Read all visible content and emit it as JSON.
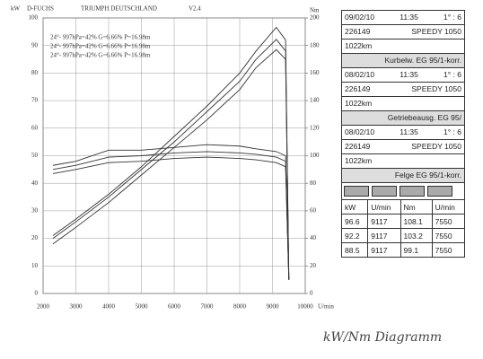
{
  "chart_data": {
    "type": "line",
    "header": [
      "D-FUCHS",
      "TRIUMPH DEUTSCHLAND",
      "V2.4"
    ],
    "y_label": "kW",
    "y2_label": "Nm",
    "x_label": "U/min",
    "x": [
      2300,
      3000,
      4000,
      5000,
      6000,
      7000,
      8000,
      8500,
      9117,
      9400,
      9500
    ],
    "xlim": [
      2000,
      10000
    ],
    "xticks": [
      2000,
      3000,
      4000,
      5000,
      6000,
      7000,
      8000,
      9000,
      10000
    ],
    "ylim": [
      0,
      100
    ],
    "yticks": [
      0,
      10,
      20,
      30,
      40,
      50,
      60,
      70,
      80,
      90,
      100
    ],
    "y2lim": [
      0,
      200
    ],
    "y2ticks": [
      0,
      20,
      40,
      60,
      80,
      100,
      120,
      140,
      160,
      180,
      200
    ],
    "grid": true,
    "series": [
      {
        "name": "24°- 997hPa=42% G=6.66% P=16.98m",
        "color": "#333",
        "values": [
          21,
          27,
          36,
          46,
          57,
          68,
          80,
          88,
          96.6,
          92,
          5
        ]
      },
      {
        "name": "24°- 997hPa=42% G=6.66% P=16.98m",
        "color": "#333",
        "values": [
          20,
          26,
          35,
          45,
          55,
          66,
          77,
          85,
          92.2,
          88,
          5
        ]
      },
      {
        "name": "24°- 997hPa=42% G=6.66% P=16.98m",
        "color": "#333",
        "values": [
          18,
          24,
          33,
          43,
          53,
          63,
          74,
          82,
          88.5,
          85,
          5
        ]
      },
      {
        "color": "#333",
        "axis": "y2",
        "values": [
          93,
          96,
          104,
          104,
          106,
          108,
          107,
          105,
          103,
          100,
          10
        ]
      },
      {
        "color": "#333",
        "axis": "y2",
        "values": [
          90,
          93,
          99,
          100,
          102,
          103,
          102,
          101,
          99,
          96,
          10
        ]
      },
      {
        "color": "#333",
        "axis": "y2",
        "values": [
          87,
          90,
          95,
          96,
          98,
          99,
          98,
          97,
          95,
          92,
          10
        ]
      }
    ]
  },
  "panel": {
    "blocks": [
      {
        "date": "09/02/10",
        "time": "11:35",
        "ratio": "1° : 6",
        "number": "226149",
        "vehicle": "SPEEDY 1050",
        "distance": "1022km",
        "label": "Kurbelw. EG 95/1-korr."
      },
      {
        "date": "08/02/10",
        "time": "11:35",
        "ratio": "1° : 6",
        "number": "226149",
        "vehicle": "SPEEDY 1050",
        "distance": "1022km",
        "label": "Getriebeausg. EG 95/"
      },
      {
        "date": "08/02/10",
        "time": "11:35",
        "ratio": "1° : 6",
        "number": "226149",
        "vehicle": "SPEEDY 1050",
        "distance": "1022km",
        "label": "Felge EG 95/1-korr."
      }
    ],
    "table": {
      "header": [
        "kW",
        "U/min",
        "Nm",
        "U/min"
      ],
      "rows": [
        [
          96.6,
          9117,
          108.1,
          7550
        ],
        [
          92.2,
          9117,
          103.2,
          7550
        ],
        [
          88.5,
          9117,
          99.1,
          7550
        ]
      ]
    }
  },
  "handwriting": "kW/Nm Diagramm"
}
